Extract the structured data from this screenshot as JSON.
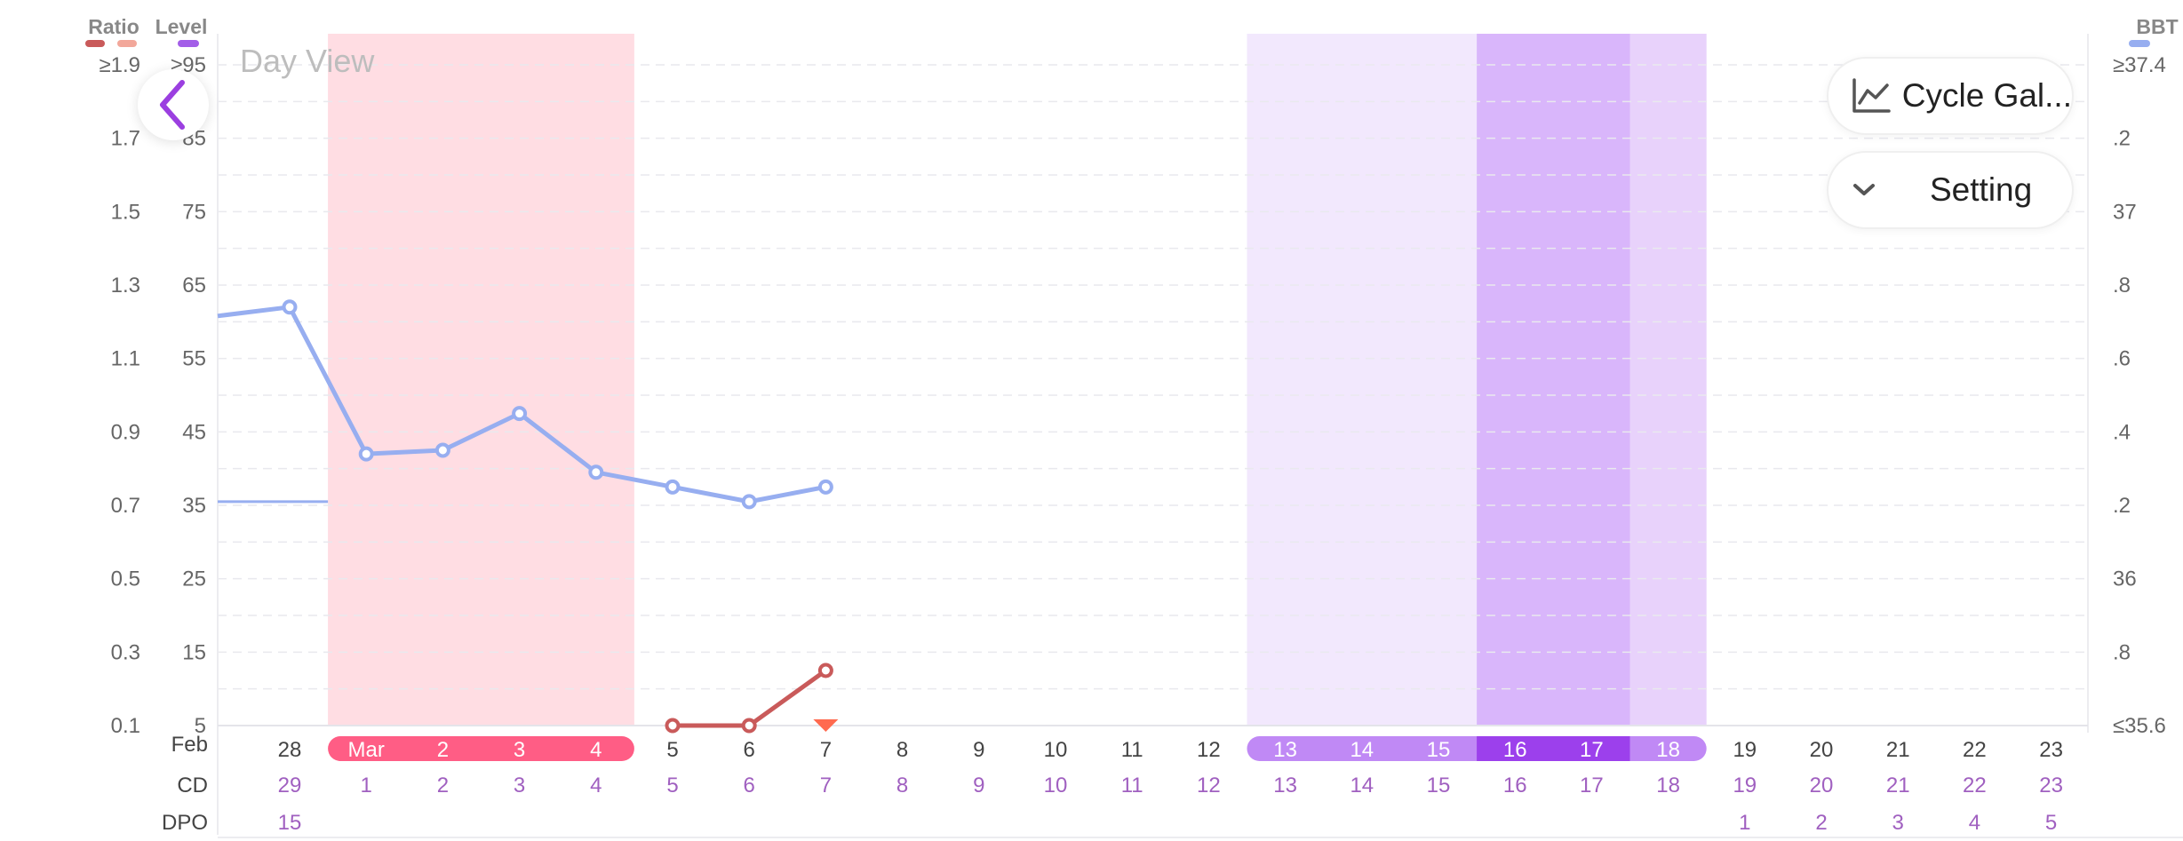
{
  "header": {
    "ratio_label": "Ratio",
    "level_label": "Level",
    "bbt_label": "BBT",
    "ratio_dark_color": "#c95a5a",
    "ratio_light_color": "#f2a79a",
    "level_color": "#a35ee8",
    "bbt_color": "#97aef0"
  },
  "view_label": "Day View",
  "buttons": {
    "back_icon": "chevron-left-icon",
    "cycle_gallery": "Cycle Gal...",
    "cycle_gallery_icon": "line-chart-icon",
    "setting": "Setting",
    "setting_icon": "chevron-down-icon"
  },
  "axes": {
    "ratio_ticks": [
      "≥1.9",
      "1.7",
      "1.5",
      "1.3",
      "1.1",
      "0.9",
      "0.7",
      "0.5",
      "0.3",
      "0.1"
    ],
    "level_ticks": [
      "≥95",
      "85",
      "75",
      "65",
      "55",
      "45",
      "35",
      "25",
      "15",
      "5"
    ],
    "bbt_ticks": [
      "≥37.4",
      ".2",
      "37",
      ".8",
      ".6",
      ".4",
      ".2",
      "36",
      ".8",
      "≤35.6"
    ]
  },
  "rows": {
    "date_header": "Feb",
    "cd_header": "CD",
    "dpo_header": "DPO"
  },
  "chart_data": {
    "type": "line",
    "days": [
      {
        "date": "28",
        "cd": "29",
        "dpo": "15"
      },
      {
        "date": "Mar",
        "cd": "1",
        "dpo": ""
      },
      {
        "date": "2",
        "cd": "2",
        "dpo": ""
      },
      {
        "date": "3",
        "cd": "3",
        "dpo": ""
      },
      {
        "date": "4",
        "cd": "4",
        "dpo": ""
      },
      {
        "date": "5",
        "cd": "5",
        "dpo": ""
      },
      {
        "date": "6",
        "cd": "6",
        "dpo": ""
      },
      {
        "date": "7",
        "cd": "7",
        "dpo": ""
      },
      {
        "date": "8",
        "cd": "8",
        "dpo": ""
      },
      {
        "date": "9",
        "cd": "9",
        "dpo": ""
      },
      {
        "date": "10",
        "cd": "10",
        "dpo": ""
      },
      {
        "date": "11",
        "cd": "11",
        "dpo": ""
      },
      {
        "date": "12",
        "cd": "12",
        "dpo": ""
      },
      {
        "date": "13",
        "cd": "13",
        "dpo": ""
      },
      {
        "date": "14",
        "cd": "14",
        "dpo": ""
      },
      {
        "date": "15",
        "cd": "15",
        "dpo": ""
      },
      {
        "date": "16",
        "cd": "16",
        "dpo": ""
      },
      {
        "date": "17",
        "cd": "17",
        "dpo": ""
      },
      {
        "date": "18",
        "cd": "18",
        "dpo": ""
      },
      {
        "date": "19",
        "cd": "19",
        "dpo": "1"
      },
      {
        "date": "20",
        "cd": "20",
        "dpo": "2"
      },
      {
        "date": "21",
        "cd": "21",
        "dpo": "3"
      },
      {
        "date": "22",
        "cd": "22",
        "dpo": "4"
      },
      {
        "date": "23",
        "cd": "23",
        "dpo": "5"
      }
    ],
    "period_days": [
      1,
      2,
      3,
      4
    ],
    "fertile_days": [
      13,
      14,
      15,
      16,
      17,
      18
    ],
    "peak_days": [
      16,
      17
    ],
    "bbt_series": {
      "name": "BBT",
      "values": [
        {
          "day": 0,
          "value": 36.74
        },
        {
          "day": 1,
          "value": 36.34
        },
        {
          "day": 2,
          "value": 36.35
        },
        {
          "day": 3,
          "value": 36.45
        },
        {
          "day": 4,
          "value": 36.29
        },
        {
          "day": 5,
          "value": 36.25
        },
        {
          "day": 6,
          "value": 36.21
        },
        {
          "day": 7,
          "value": 36.25
        }
      ],
      "coverline": 36.21
    },
    "ratio_series": {
      "name": "Ratio",
      "values": [
        {
          "day": 5,
          "value": 0.1
        },
        {
          "day": 6,
          "value": 0.1
        },
        {
          "day": 7,
          "value": 0.25
        }
      ]
    },
    "marker_day": 7,
    "ratio_range": [
      0.1,
      1.9
    ],
    "level_range": [
      5,
      95
    ],
    "bbt_range": [
      35.6,
      37.4
    ],
    "grid": true
  }
}
